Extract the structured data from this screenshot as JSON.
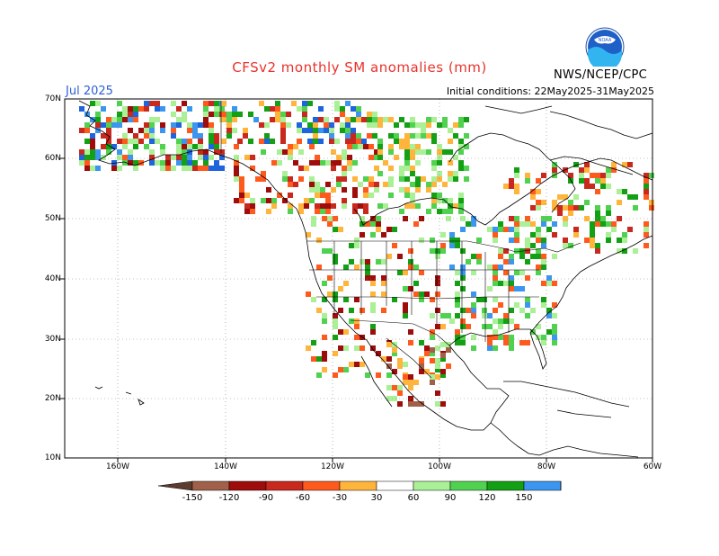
{
  "header": {
    "title": "CFSv2 monthly SM anomalies (mm)",
    "org": "NWS/NCEP/CPC",
    "month": "Jul 2025",
    "initial_conditions": "Initial conditions: 22May2025-31May2025",
    "logo_icon": "noaa-logo-icon"
  },
  "axes": {
    "lat_labels": [
      "70N",
      "60N",
      "50N",
      "40N",
      "30N",
      "20N",
      "10N"
    ],
    "lon_labels": [
      "160W",
      "140W",
      "120W",
      "100W",
      "80W",
      "60W"
    ]
  },
  "colorbar": {
    "labels": [
      "-150",
      "-120",
      "-90",
      "-60",
      "-30",
      "30",
      "60",
      "90",
      "120",
      "150"
    ],
    "colors": [
      "#5c3c2e",
      "#a0604a",
      "#9e0c0c",
      "#c8281e",
      "#ff5a1e",
      "#ffb43c",
      "#ffffff",
      "#aaf096",
      "#50d250",
      "#14a014",
      "#3c96f0",
      "#1e64dc"
    ]
  }
}
